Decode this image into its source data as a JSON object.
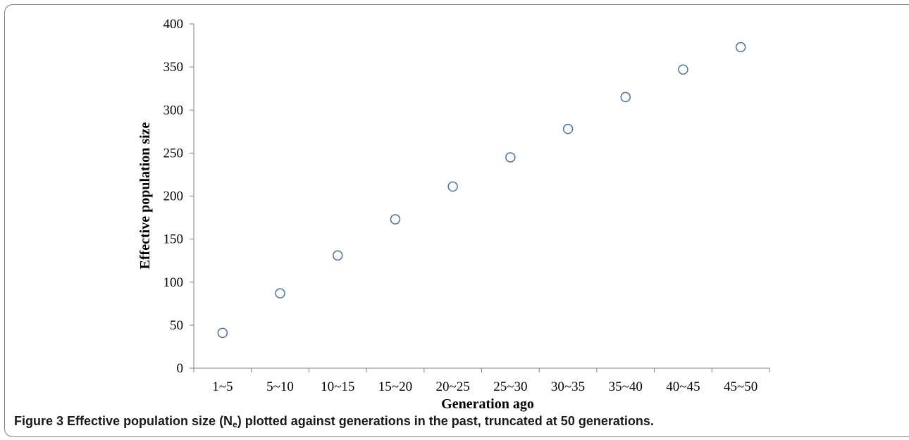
{
  "chart_data": {
    "type": "scatter",
    "title": "",
    "xlabel": "Generation ago",
    "ylabel": "Effective population size",
    "categories": [
      "1~5",
      "5~10",
      "10~15",
      "15~20",
      "20~25",
      "25~30",
      "30~35",
      "35~40",
      "40~45",
      "45~50"
    ],
    "values": [
      41,
      87,
      131,
      173,
      211,
      245,
      278,
      315,
      347,
      373
    ],
    "ylim": [
      0,
      400
    ],
    "yticks": [
      0,
      50,
      100,
      150,
      200,
      250,
      300,
      350,
      400
    ],
    "grid": false,
    "legend": "none",
    "marker": "open-circle",
    "marker_color": "#4a6fa5"
  },
  "caption": {
    "label": "Figure 3",
    "text_before": "Effective population size (N",
    "subscript": "e",
    "text_after": ") plotted against generations in the past, truncated at 50 generations."
  }
}
